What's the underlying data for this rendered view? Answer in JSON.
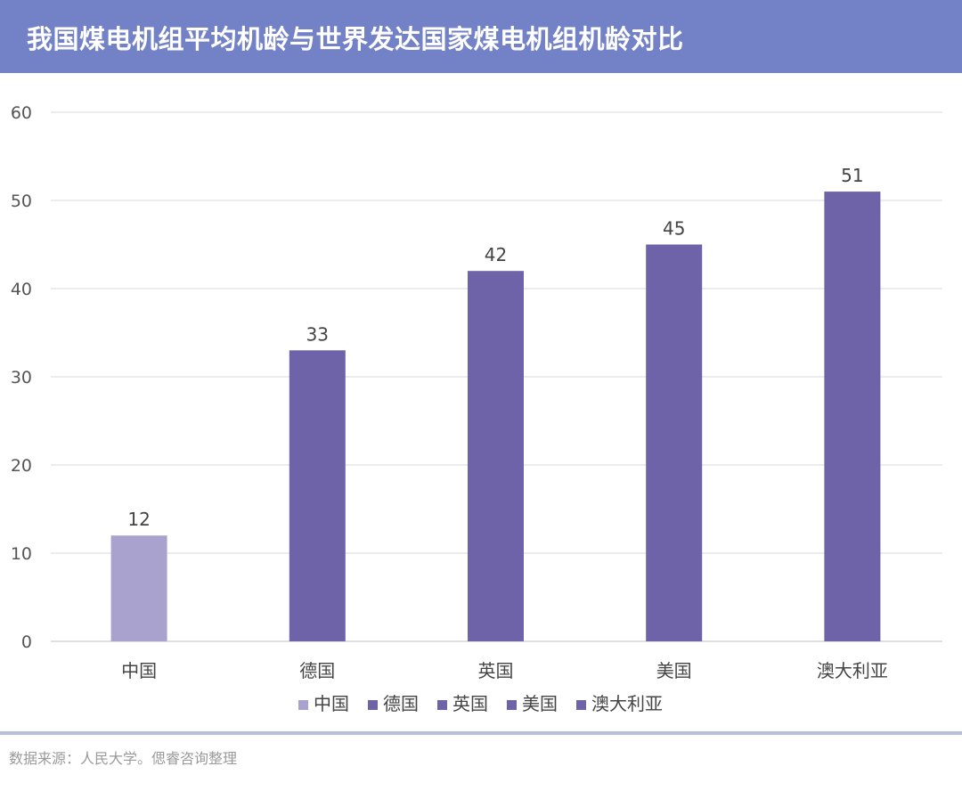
{
  "header": {
    "title": "我国煤电机组平均机龄与世界发达国家煤电机组机龄对比"
  },
  "chart_data": {
    "type": "bar",
    "title": "我国煤电机组平均机龄与世界发达国家煤电机组机龄对比",
    "xlabel": "",
    "ylabel": "",
    "categories": [
      "中国",
      "德国",
      "英国",
      "美国",
      "澳大利亚"
    ],
    "values": [
      12,
      33,
      42,
      45,
      51
    ],
    "ylim": [
      0,
      60
    ],
    "yticks": [
      0,
      10,
      20,
      30,
      40,
      50,
      60
    ],
    "grid": true,
    "legend_position": "bottom",
    "data_labels": true,
    "series": [
      {
        "name": "中国",
        "color": "#a9a2cf"
      },
      {
        "name": "德国",
        "color": "#6e62a8"
      },
      {
        "name": "英国",
        "color": "#6e62a8"
      },
      {
        "name": "美国",
        "color": "#6e62a8"
      },
      {
        "name": "澳大利亚",
        "color": "#6e62a8"
      }
    ]
  },
  "colors": {
    "header_bg": "#7381c6",
    "highlight_bar": "#a9a2cf",
    "bar": "#6e62a8",
    "grid": "#d9d9d9"
  },
  "footer": {
    "source": "数据来源：人民大学。偲睿咨询整理"
  }
}
